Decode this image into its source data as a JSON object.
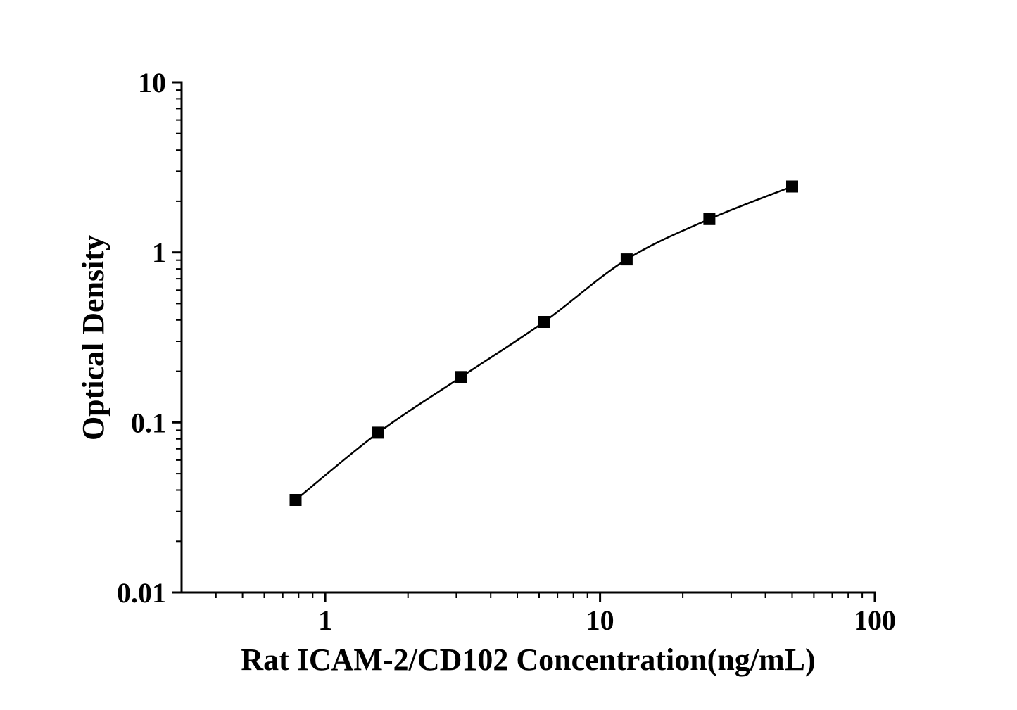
{
  "page": {
    "background_color": "#ffffff",
    "foreground_color": "#000000"
  },
  "chart_data": {
    "type": "line",
    "title": "",
    "xlabel": "Rat ICAM-2/CD102 Concentration(ng/mL)",
    "ylabel": "Optical Density",
    "x_scale": "log",
    "y_scale": "log",
    "xlim": [
      0.3,
      100
    ],
    "ylim": [
      0.01,
      10
    ],
    "grid": false,
    "legend": false,
    "series": [
      {
        "name": "standard-curve",
        "marker": "filled-square",
        "marker_color": "#000000",
        "line_color": "#000000",
        "x": [
          0.78,
          1.56,
          3.12,
          6.25,
          12.5,
          25,
          50
        ],
        "y": [
          0.035,
          0.087,
          0.185,
          0.39,
          0.91,
          1.57,
          2.44
        ]
      }
    ],
    "x_major_ticks": [
      1,
      10,
      100
    ],
    "x_major_tick_labels": [
      "1",
      "10",
      "100"
    ],
    "x_minor_ticks": [
      0.4,
      0.5,
      0.6,
      0.7,
      0.8,
      0.9,
      2,
      3,
      4,
      5,
      6,
      7,
      8,
      9,
      20,
      30,
      40,
      50,
      60,
      70,
      80,
      90
    ],
    "y_major_ticks": [
      0.01,
      0.1,
      1,
      10
    ],
    "y_major_tick_labels": [
      "0.01",
      "0.1",
      "1",
      "10"
    ],
    "y_minor_ticks": [
      0.02,
      0.03,
      0.04,
      0.05,
      0.06,
      0.07,
      0.08,
      0.09,
      0.2,
      0.3,
      0.4,
      0.5,
      0.6,
      0.7,
      0.8,
      0.9,
      2,
      3,
      4,
      5,
      6,
      7,
      8,
      9
    ]
  }
}
